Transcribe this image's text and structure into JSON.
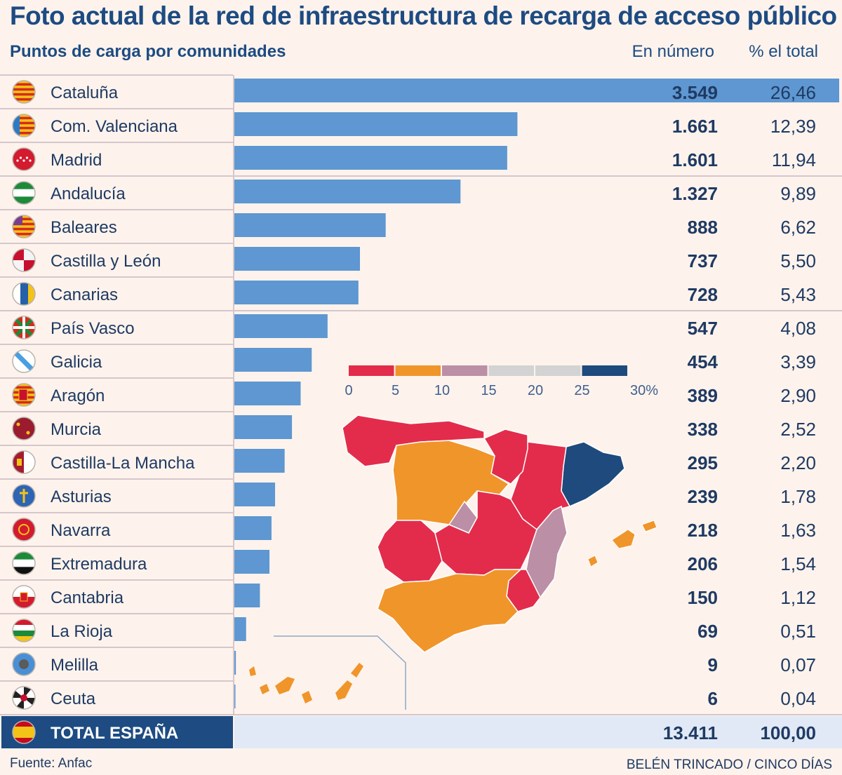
{
  "title": "Foto actual de la red de infraestructura de recarga de acceso público",
  "subtitle": "Puntos de carga por comunidades",
  "col_number": "En número",
  "col_percent": "% el total",
  "source": "Fuente: Anfac",
  "credit": "BELÉN TRINCADO / CINCO DÍAS",
  "colors": {
    "bar": "#5e97d1",
    "total_bar_bg": "#e1e9f6",
    "total_label_bg": "#1d4b82",
    "scale": [
      "#e32c4b",
      "#f0952a",
      "#bb8fa6",
      "#d3d3d3",
      "#d3d3d3",
      "#1e4a7d"
    ]
  },
  "chart_data": {
    "type": "bar",
    "orientation": "horizontal",
    "categories": [
      "Cataluña",
      "Com. Valenciana",
      "Madrid",
      "Andalucía",
      "Baleares",
      "Castilla y León",
      "Canarias",
      "País Vasco",
      "Galicia",
      "Aragón",
      "Murcia",
      "Castilla-La Mancha",
      "Asturias",
      "Navarra",
      "Extremadura",
      "Cantabria",
      "La Rioja",
      "Melilla",
      "Ceuta"
    ],
    "values": [
      3549,
      1661,
      1601,
      1327,
      888,
      737,
      728,
      547,
      454,
      389,
      338,
      295,
      239,
      218,
      206,
      150,
      69,
      9,
      6
    ],
    "value_labels": [
      "3.549",
      "1.661",
      "1.601",
      "1.327",
      "888",
      "737",
      "728",
      "547",
      "454",
      "389",
      "338",
      "295",
      "239",
      "218",
      "206",
      "150",
      "69",
      "9",
      "6"
    ],
    "percent_labels": [
      "26,46",
      "12,39",
      "11,94",
      "9,89",
      "6,62",
      "5,50",
      "5,43",
      "4,08",
      "3,39",
      "2,90",
      "2,52",
      "2,20",
      "1,78",
      "1,63",
      "1,54",
      "1,12",
      "0,51",
      "0,07",
      "0,04"
    ],
    "percent": [
      26.46,
      12.39,
      11.94,
      9.89,
      6.62,
      5.5,
      5.43,
      4.08,
      3.39,
      2.9,
      2.52,
      2.2,
      1.78,
      1.63,
      1.54,
      1.12,
      0.51,
      0.07,
      0.04
    ],
    "flag_icons": [
      "cataluna-flag-icon",
      "valencia-flag-icon",
      "madrid-flag-icon",
      "andalucia-flag-icon",
      "baleares-flag-icon",
      "castilla-leon-flag-icon",
      "canarias-flag-icon",
      "pais-vasco-flag-icon",
      "galicia-flag-icon",
      "aragon-flag-icon",
      "murcia-flag-icon",
      "castilla-la-mancha-flag-icon",
      "asturias-flag-icon",
      "navarra-flag-icon",
      "extremadura-flag-icon",
      "cantabria-flag-icon",
      "la-rioja-flag-icon",
      "melilla-flag-icon",
      "ceuta-flag-icon"
    ],
    "xlim": [
      0,
      3549
    ],
    "total": {
      "label": "TOTAL ESPAÑA",
      "value_label": "13.411",
      "percent_label": "100,00",
      "flag_icon": "espana-flag-icon"
    },
    "map_scale": {
      "ticks": [
        "0",
        "5",
        "10",
        "15",
        "20",
        "25",
        "30%"
      ]
    }
  }
}
